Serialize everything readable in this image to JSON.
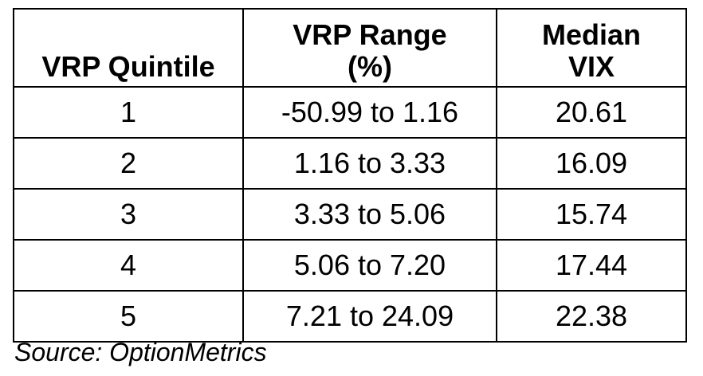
{
  "table": {
    "headers": [
      "VRP Quintile",
      "VRP Range\n(%)",
      "Median\nVIX"
    ],
    "rows": [
      [
        "1",
        "-50.99 to 1.16",
        "20.61"
      ],
      [
        "2",
        "1.16 to 3.33",
        "16.09"
      ],
      [
        "3",
        "3.33 to 5.06",
        "15.74"
      ],
      [
        "4",
        "5.06 to 7.20",
        "17.44"
      ],
      [
        "5",
        "7.21 to 24.09",
        "22.38"
      ]
    ]
  },
  "source": "Source: OptionMetrics"
}
